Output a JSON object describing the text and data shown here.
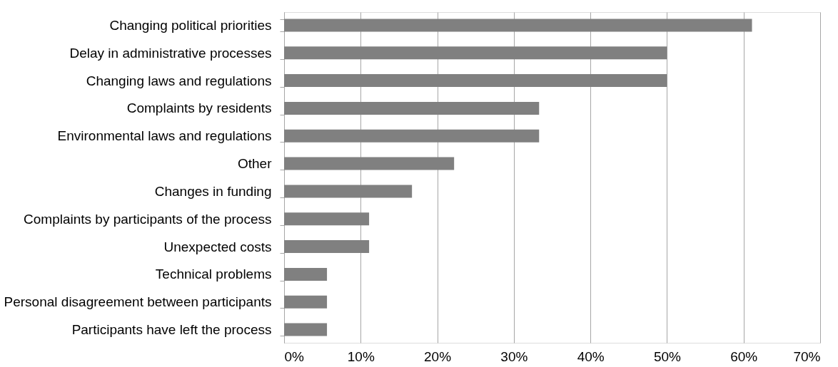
{
  "chart_data": {
    "type": "bar",
    "orientation": "horizontal",
    "categories": [
      "Changing political priorities",
      "Delay in administrative processes",
      "Changing laws and regulations",
      "Complaints by residents",
      "Environmental laws and regulations",
      "Other",
      "Changes in funding",
      "Complaints by participants of the process",
      "Unexpected costs",
      "Technical problems",
      "Personal disagreement between participants",
      "Participants have left the process"
    ],
    "values": [
      61.1,
      50,
      50,
      33.3,
      33.3,
      22.2,
      16.7,
      11.1,
      11.1,
      5.6,
      5.6,
      5.6
    ],
    "color": "#808080",
    "xlim": [
      0,
      70
    ],
    "xticks": [
      {
        "value": 0,
        "label": "0%"
      },
      {
        "value": 10,
        "label": "10%"
      },
      {
        "value": 20,
        "label": "20%"
      },
      {
        "value": 30,
        "label": "30%"
      },
      {
        "value": 40,
        "label": "40%"
      },
      {
        "value": 50,
        "label": "50%"
      },
      {
        "value": 60,
        "label": "60%"
      },
      {
        "value": 70,
        "label": "70%"
      }
    ],
    "grid": "x"
  }
}
